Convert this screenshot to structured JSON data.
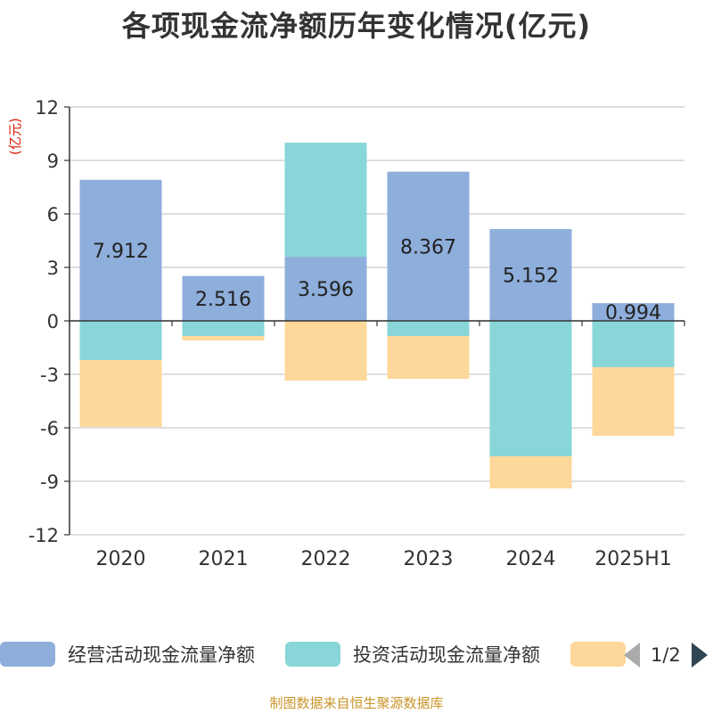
{
  "title": "各项现金流净额历年变化情况(亿元)",
  "unit_label": "(亿元)",
  "source": "制图数据来自恒生聚源数据库",
  "legend": {
    "items": [
      {
        "label": "经营活动现金流量净额",
        "color": "#8eaedb"
      },
      {
        "label": "投资活动现金流量净额",
        "color": "#88d6d8"
      },
      {
        "label": "",
        "color": "#fed89a"
      }
    ],
    "page": "1/2"
  },
  "chart_data": {
    "type": "bar",
    "stacked": true,
    "categories": [
      "2020",
      "2021",
      "2022",
      "2023",
      "2024",
      "2025H1"
    ],
    "series": [
      {
        "name": "经营活动现金流量净额",
        "color": "#8eaedb",
        "values": [
          7.912,
          2.516,
          3.596,
          8.367,
          5.152,
          0.994
        ],
        "labels": [
          "7.912",
          "2.516",
          "3.596",
          "8.367",
          "5.152",
          "0.994"
        ]
      },
      {
        "name": "投资活动现金流量净额",
        "color": "#88d6d8",
        "values": [
          -2.2,
          -0.85,
          6.4,
          -0.85,
          -7.6,
          -2.6
        ]
      },
      {
        "color": "#fed89a",
        "values": [
          -3.75,
          -0.25,
          -3.35,
          -2.4,
          -1.8,
          -3.85
        ]
      }
    ],
    "ylim": [
      -12,
      12
    ],
    "yticks": [
      "12",
      "9",
      "6",
      "3",
      "0",
      "-3",
      "-6",
      "-9",
      "-12"
    ],
    "grid": true
  }
}
